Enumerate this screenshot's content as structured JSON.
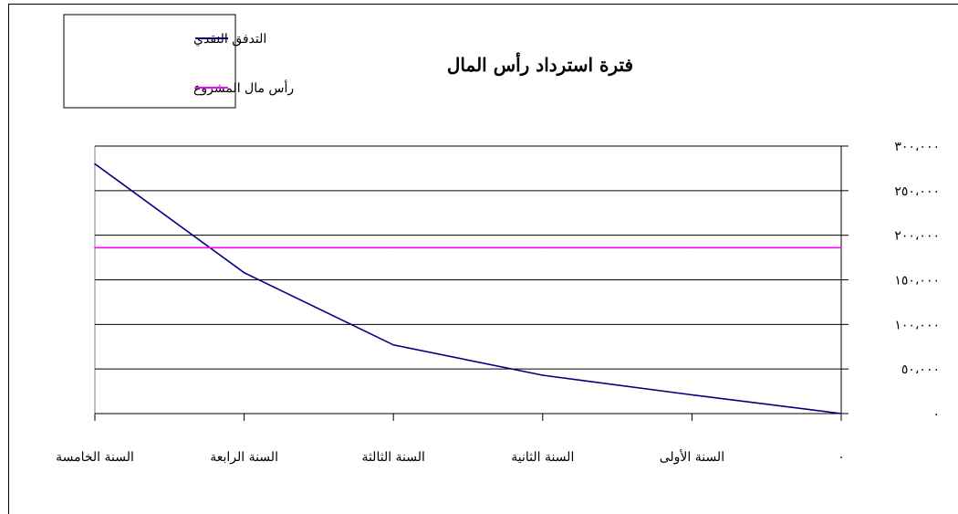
{
  "chart_data": {
    "type": "line",
    "title": "فترة استرداد رأس المال",
    "xlabel": "",
    "ylabel": "",
    "categories": [
      "٠",
      "السنة الأولى",
      "السنة الثانية",
      "السنة الثالثة",
      "السنة الرابعة",
      "السنة الخامسة"
    ],
    "x_direction": "right-to-left",
    "ylim": [
      0,
      300000
    ],
    "y_ticks": [
      0,
      50000,
      100000,
      150000,
      200000,
      250000,
      300000
    ],
    "y_tick_labels": [
      "٠",
      "٥٠،٠٠٠",
      "١٠٠،٠٠٠",
      "١٥٠،٠٠٠",
      "٢٠٠،٠٠٠",
      "٢٥٠،٠٠٠",
      "٣٠٠،٠٠٠"
    ],
    "grid": true,
    "legend_position": "top-left",
    "series": [
      {
        "name": "التدفق النقدي",
        "color": "#000080",
        "values": [
          0,
          21000,
          43000,
          77000,
          158000,
          280000
        ]
      },
      {
        "name": "رأس مال المشروع",
        "color": "#ff00ff",
        "values": [
          186000,
          186000,
          186000,
          186000,
          186000,
          186000
        ]
      }
    ]
  }
}
